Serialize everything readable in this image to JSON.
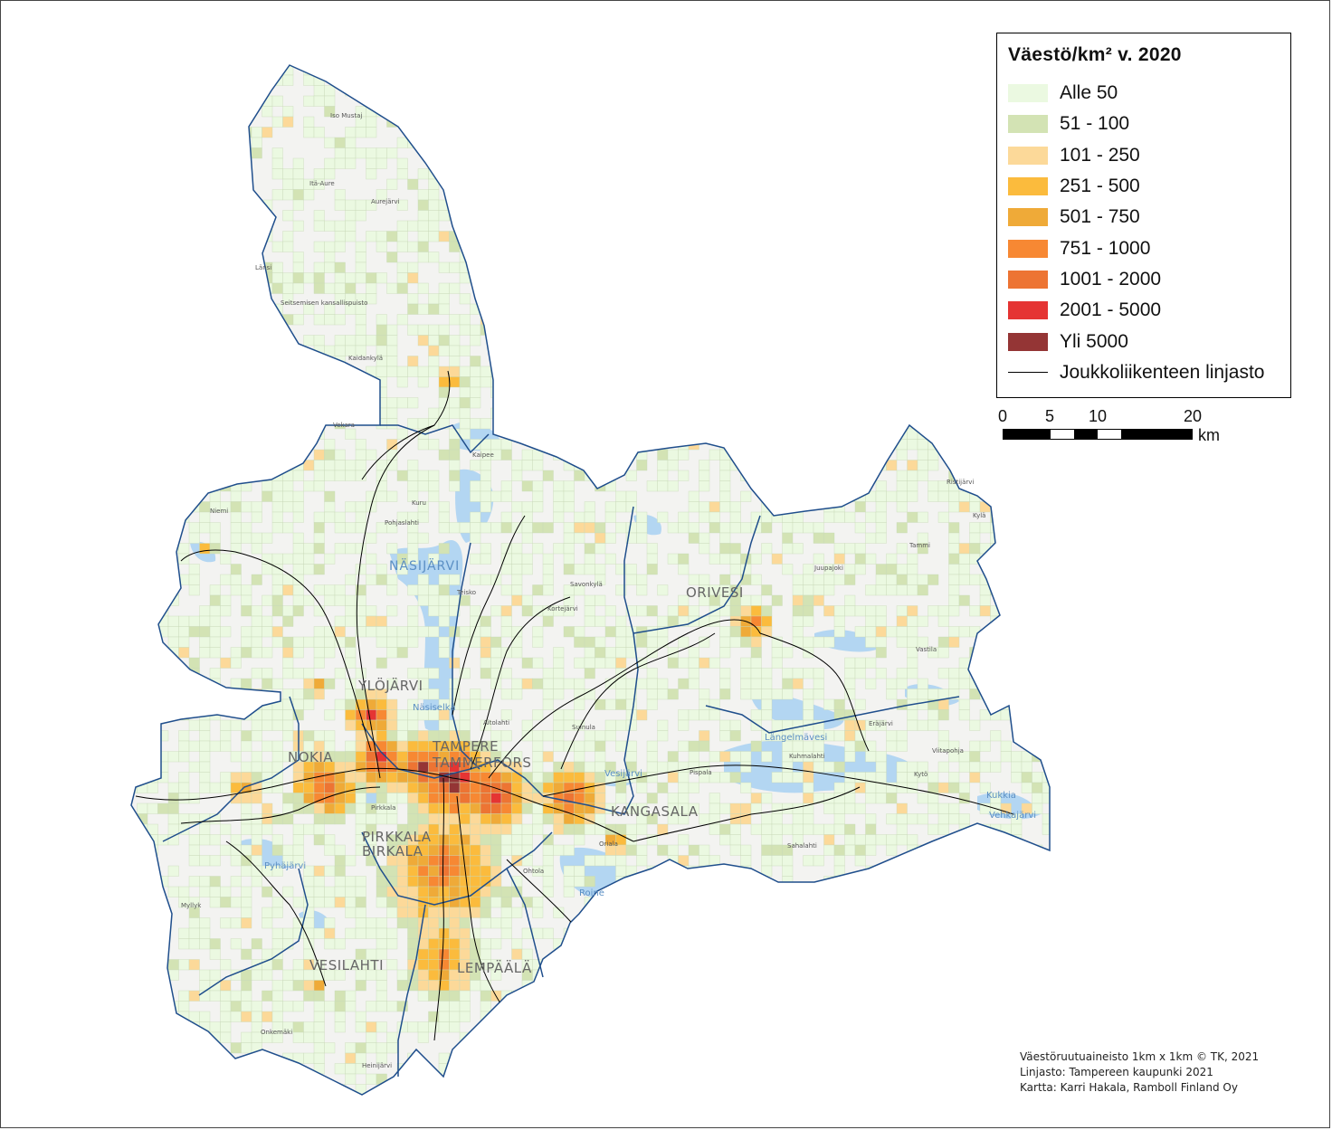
{
  "legend": {
    "title": "Väestö/km² v. 2020",
    "classes": [
      {
        "label": "Alle 50",
        "color": "#ebf9e1"
      },
      {
        "label": "51 - 100",
        "color": "#d3e3b4"
      },
      {
        "label": "101 - 250",
        "color": "#fcd999"
      },
      {
        "label": "251 - 500",
        "color": "#fbbb3d"
      },
      {
        "label": "501 - 750",
        "color": "#efaa38"
      },
      {
        "label": "751 - 1000",
        "color": "#f78833"
      },
      {
        "label": "1001 - 2000",
        "color": "#ed7433"
      },
      {
        "label": "2001 - 5000",
        "color": "#e53433"
      },
      {
        "label": "Yli 5000",
        "color": "#943535"
      }
    ],
    "line_label": "Joukkoliikenteen linjasto"
  },
  "scale": {
    "ticks": [
      "0",
      "5",
      "10",
      "20"
    ],
    "unit": "km"
  },
  "credits": [
    "Väestöruutuaineisto 1km x 1km © TK, 2021",
    "Linjasto: Tampereen kaupunki 2021",
    "Kartta: Karri Hakala, Ramboll Finland Oy"
  ],
  "towns": [
    "NOKIA",
    "TAMPERE",
    "TAMMERFORS",
    "ORIVESI",
    "PIRKKALA",
    "BIRKALA",
    "KANGASALA",
    "LEMPÄÄLÄ",
    "VESILAHTI",
    "YLÖJÄRVI"
  ],
  "lakes": [
    "NÄSIJÄRVI",
    "Näsiselkä",
    "Längelmävesi",
    "Roine",
    "Vesijärvi",
    "Kukkia",
    "Vehkajärvi",
    "Pyhäjärvi"
  ],
  "places": [
    "Iso Mustaj",
    "Itä-Aure",
    "Aurejärvi",
    "Seitsemisen kansallispuisto",
    "Kaidankylä",
    "Vekara",
    "Kuru",
    "Pohjaslahti",
    "Kaipee",
    "Länsi",
    "Niemi",
    "Kortejärvi",
    "Teisko",
    "Savonkylä",
    "Aitolahti",
    "Pirkkala",
    "Ohtola",
    "Suinula",
    "Pispala",
    "Kuhmalahti",
    "Eräjärvi",
    "Ristijärvi",
    "Sahalahti",
    "Onkemäki",
    "Heinijärvi",
    "Myllyk",
    "Juupajoki",
    "Viitapohja",
    "Kytö",
    "Kylä",
    "Tammi",
    "Vastila",
    "Oriala"
  ],
  "colors": {
    "land": "#ffffff",
    "basemap": "#f2f2f0",
    "water": "#b3d6f2",
    "boundary": "#1f4e8c",
    "transit_line": "#000000"
  }
}
